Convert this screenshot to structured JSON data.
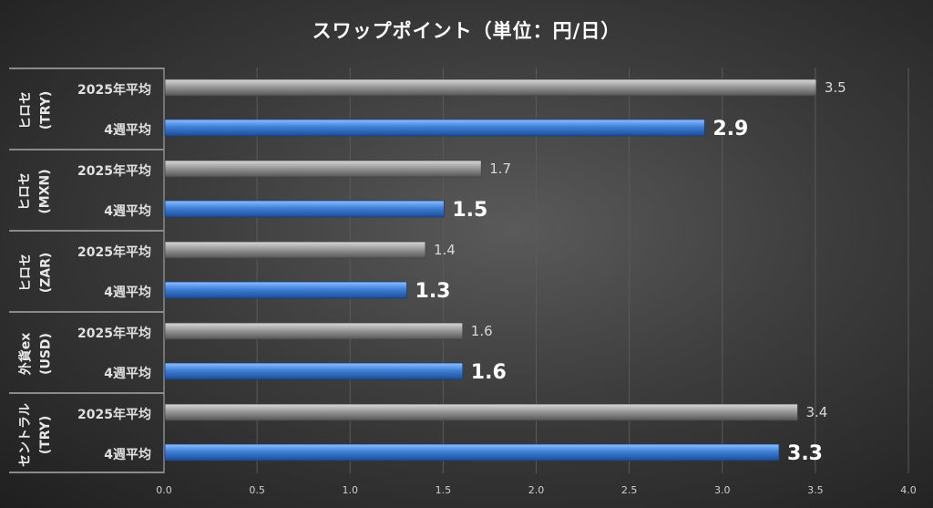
{
  "chart_data": {
    "type": "bar",
    "orientation": "horizontal",
    "title": "スワップポイント（単位：円/日）",
    "xlim": [
      0,
      4.0
    ],
    "xticks": [
      "0.0",
      "0.5",
      "1.0",
      "1.5",
      "2.0",
      "2.5",
      "3.0",
      "3.5",
      "4.0"
    ],
    "grid": true,
    "groups": [
      {
        "label": "ヒロセ\n(TRY)",
        "bars": [
          {
            "category": "2025年平均",
            "value": 3.5,
            "label": "3.5"
          },
          {
            "category": "4週平均",
            "value": 2.9,
            "label": "2.9"
          }
        ]
      },
      {
        "label": "ヒロセ\n(MXN)",
        "bars": [
          {
            "category": "2025年平均",
            "value": 1.7,
            "label": "1.7"
          },
          {
            "category": "4週平均",
            "value": 1.5,
            "label": "1.5"
          }
        ]
      },
      {
        "label": "ヒロセ\n(ZAR)",
        "bars": [
          {
            "category": "2025年平均",
            "value": 1.4,
            "label": "1.4"
          },
          {
            "category": "4週平均",
            "value": 1.3,
            "label": "1.3"
          }
        ]
      },
      {
        "label": "外貨ex\n(USD)",
        "bars": [
          {
            "category": "2025年平均",
            "value": 1.6,
            "label": "1.6"
          },
          {
            "category": "4週平均",
            "value": 1.6,
            "label": "1.6"
          }
        ]
      },
      {
        "label": "セントラル\n(TRY)",
        "bars": [
          {
            "category": "2025年平均",
            "value": 3.4,
            "label": "3.4"
          },
          {
            "category": "4週平均",
            "value": 3.3,
            "label": "3.3"
          }
        ]
      }
    ],
    "colors": {
      "2025年平均": "#8c8c8c",
      "4週平均": "#3f7fd0"
    }
  }
}
